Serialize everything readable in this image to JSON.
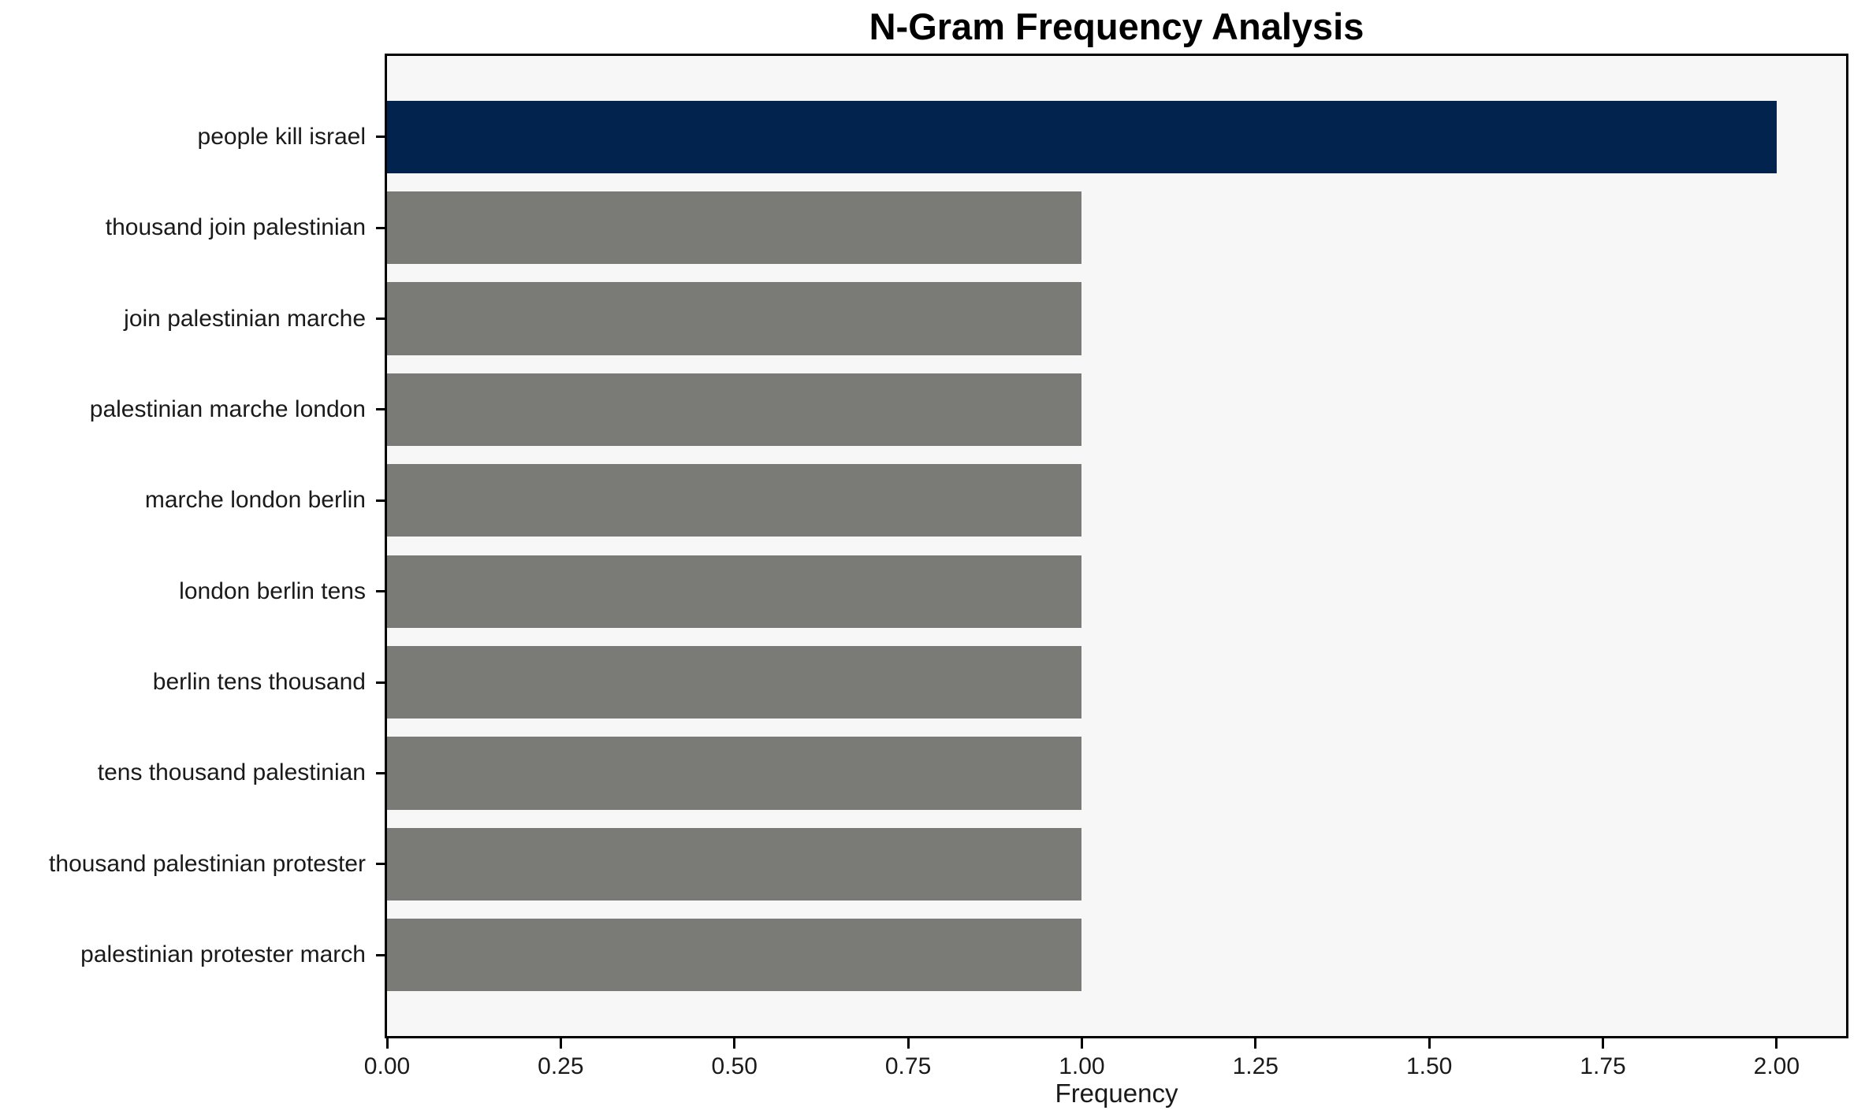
{
  "chart_data": {
    "type": "bar",
    "orientation": "horizontal",
    "title": "N-Gram Frequency Analysis",
    "xlabel": "Frequency",
    "ylabel": "",
    "categories": [
      "people kill israel",
      "thousand join palestinian",
      "join palestinian marche",
      "palestinian marche london",
      "marche london berlin",
      "london berlin tens",
      "berlin tens thousand",
      "tens thousand palestinian",
      "thousand palestinian protester",
      "palestinian protester march"
    ],
    "values": [
      2,
      1,
      1,
      1,
      1,
      1,
      1,
      1,
      1,
      1
    ],
    "xticks": [
      "0.00",
      "0.25",
      "0.50",
      "0.75",
      "1.00",
      "1.25",
      "1.50",
      "1.75",
      "2.00"
    ],
    "xlim": [
      0,
      2.1
    ],
    "grid": false,
    "legend": "none",
    "colors": {
      "bar_highlight": "#02234e",
      "bar_default": "#7a7b77",
      "plot_background": "#f7f7f7",
      "figure_background": "#ffffff",
      "spine": "#000000",
      "text": "#1a1a1a"
    }
  }
}
